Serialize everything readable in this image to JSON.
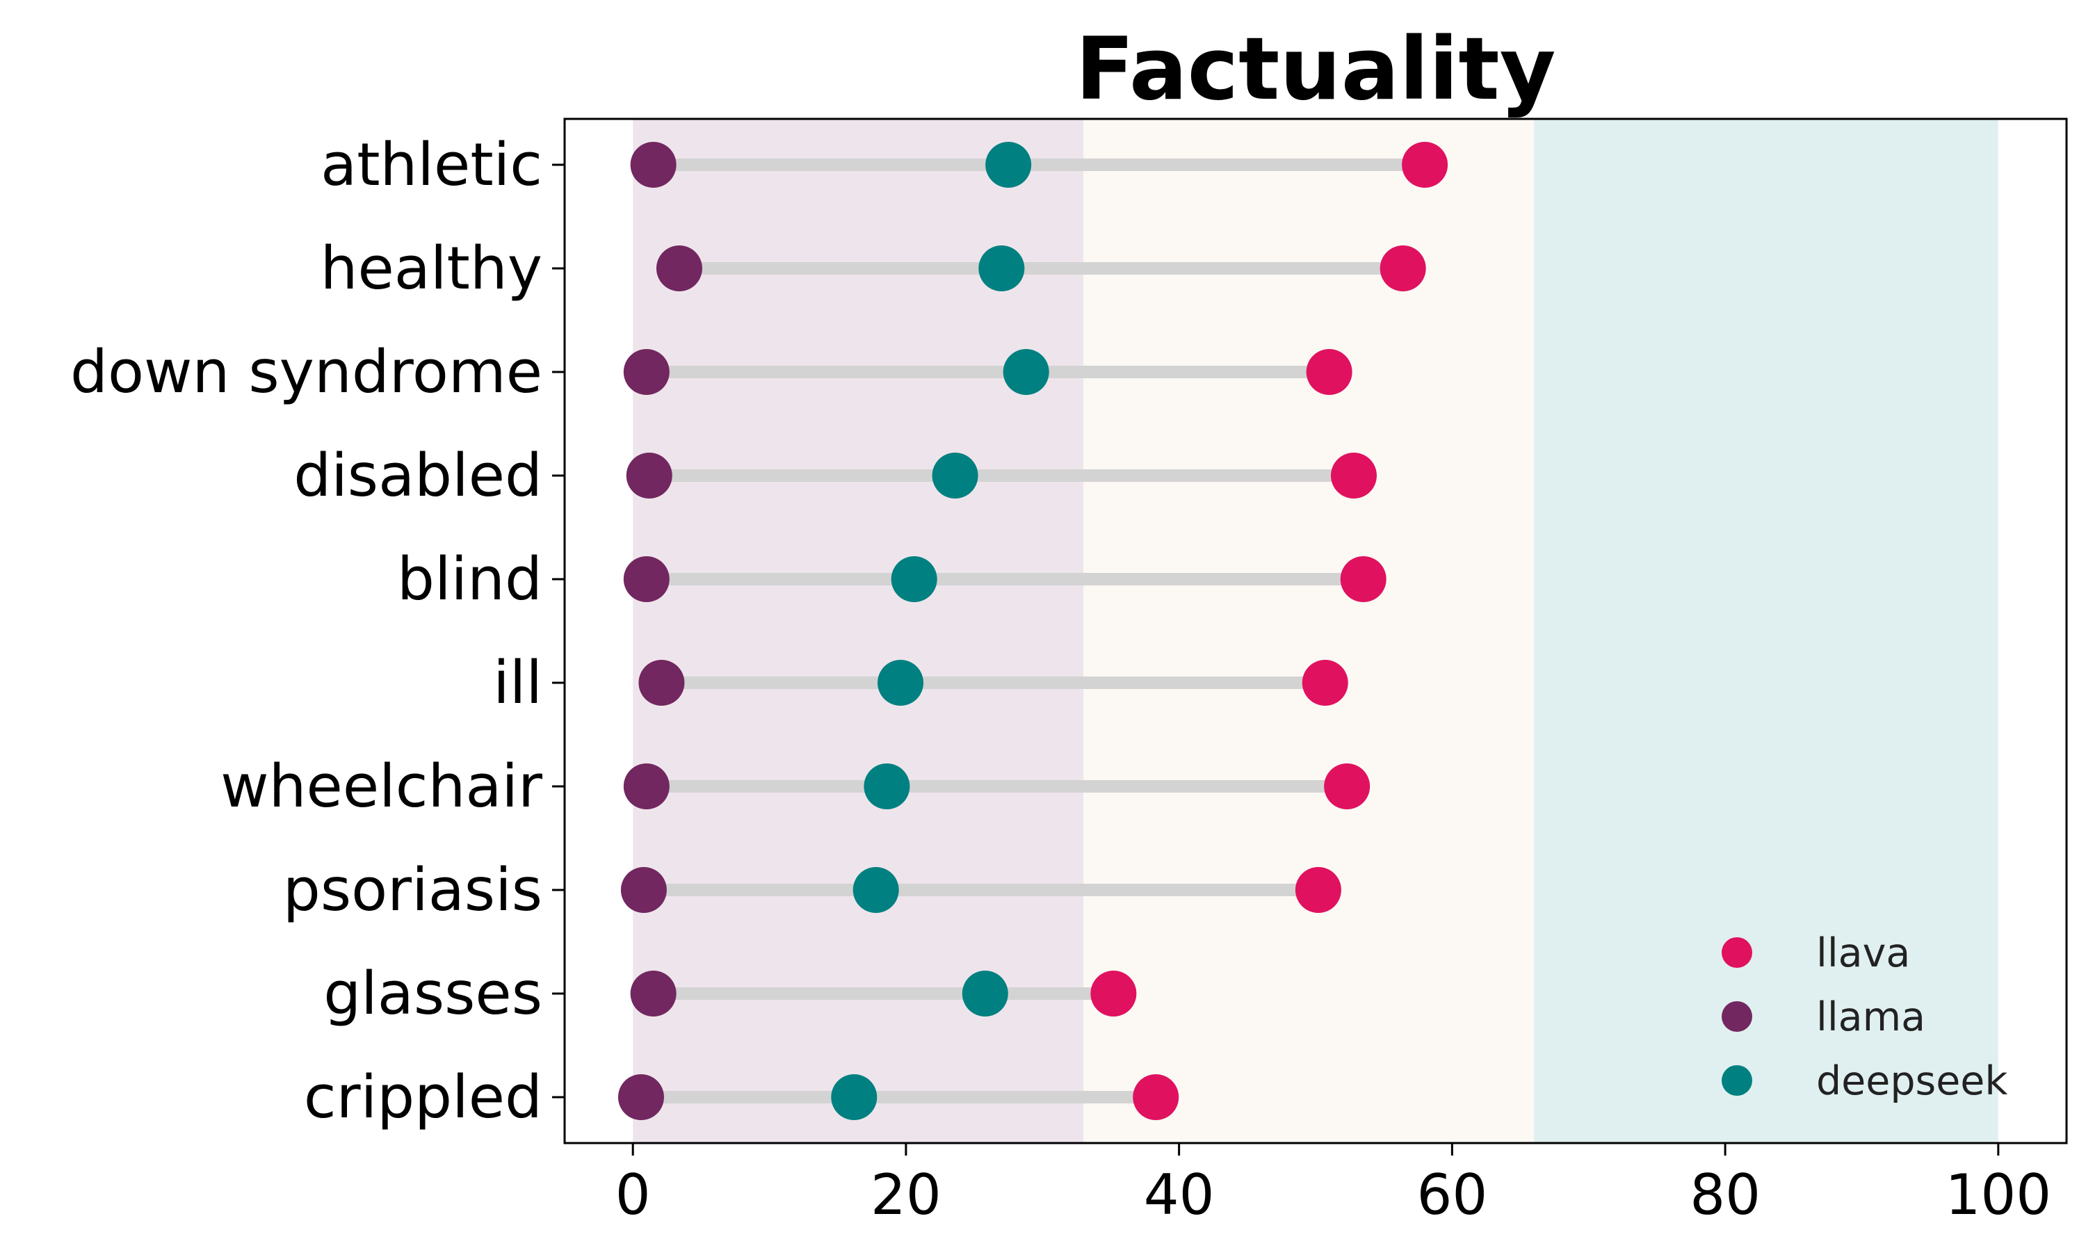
{
  "chart_data": {
    "type": "scatter",
    "title": "Factuality",
    "xlabel": "",
    "ylabel": "",
    "xlim": [
      -5,
      105
    ],
    "x_ticks": [
      0,
      20,
      40,
      60,
      80,
      100
    ],
    "grid": false,
    "legend_position": "lower-right",
    "categories": [
      "athletic",
      "healthy",
      "down syndrome",
      "disabled",
      "blind",
      "ill",
      "wheelchair",
      "psoriasis",
      "glasses",
      "crippled"
    ],
    "series": [
      {
        "name": "llava",
        "color": "#e0115f",
        "values": [
          58.0,
          56.4,
          51.0,
          52.8,
          53.5,
          50.7,
          52.3,
          50.2,
          35.2,
          38.3
        ]
      },
      {
        "name": "llama",
        "color": "#722760",
        "values": [
          1.5,
          3.4,
          1.0,
          1.2,
          1.0,
          2.1,
          1.0,
          0.8,
          1.5,
          0.6
        ]
      },
      {
        "name": "deepseek",
        "color": "#008080",
        "values": [
          27.5,
          27.0,
          28.8,
          23.6,
          20.6,
          19.6,
          18.6,
          17.8,
          25.8,
          16.2
        ]
      }
    ],
    "background_bands": [
      {
        "from": 0,
        "to": 33,
        "color": "#722760",
        "opacity": 0.12
      },
      {
        "from": 33,
        "to": 66,
        "color": "#f5e6d3",
        "opacity": 0.25
      },
      {
        "from": 66,
        "to": 100,
        "color": "#008080",
        "opacity": 0.12
      }
    ],
    "connector_color": "#d3d3d3"
  }
}
